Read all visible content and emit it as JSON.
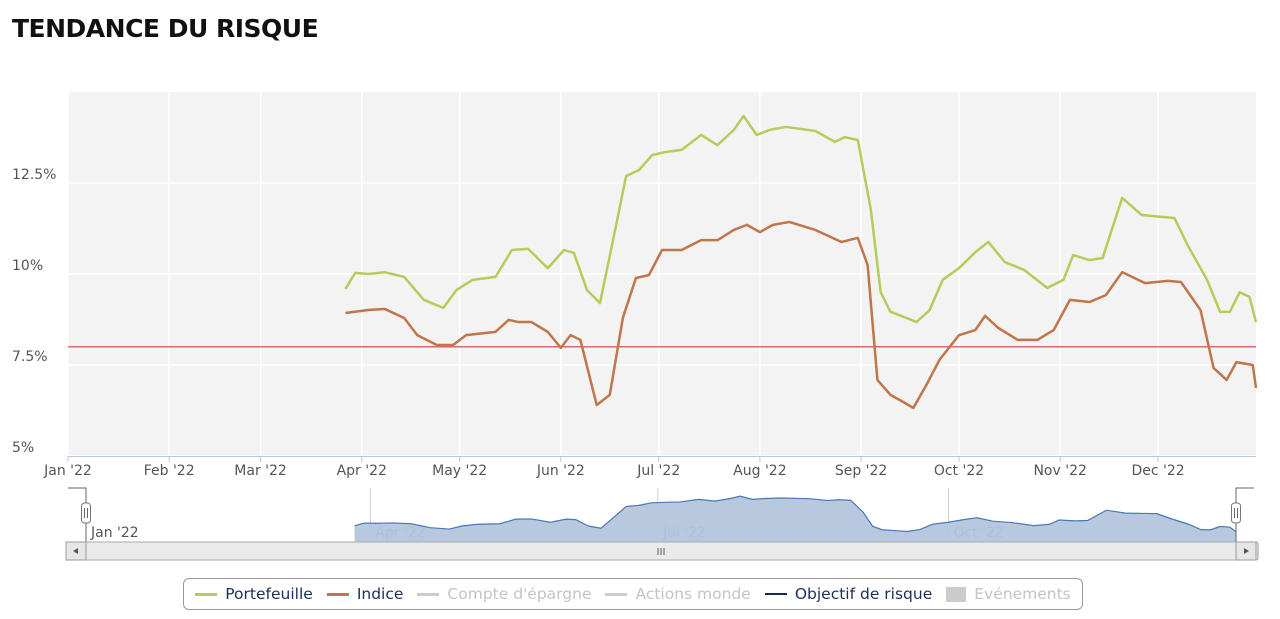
{
  "title": "TENDANCE DU RISQUE",
  "chart_data": {
    "type": "line",
    "title": "TENDANCE DU RISQUE",
    "xlabel": "",
    "ylabel": "",
    "xlim": [
      "2022-01-01",
      "2022-12-31"
    ],
    "ylim": [
      5,
      15
    ],
    "y_ticks": [
      {
        "v": 5,
        "label": "5%"
      },
      {
        "v": 7.5,
        "label": "7.5%"
      },
      {
        "v": 10,
        "label": "10%"
      },
      {
        "v": 12.5,
        "label": "12.5%"
      }
    ],
    "x_ticks": [
      {
        "d": "2022-01-01",
        "label": "Jan '22"
      },
      {
        "d": "2022-02-01",
        "label": "Feb '22"
      },
      {
        "d": "2022-03-01",
        "label": "Mar '22"
      },
      {
        "d": "2022-04-01",
        "label": "Apr '22"
      },
      {
        "d": "2022-05-01",
        "label": "May '22"
      },
      {
        "d": "2022-06-01",
        "label": "Jun '22"
      },
      {
        "d": "2022-07-01",
        "label": "Jul '22"
      },
      {
        "d": "2022-08-01",
        "label": "Aug '22"
      },
      {
        "d": "2022-09-01",
        "label": "Sep '22"
      },
      {
        "d": "2022-10-01",
        "label": "Oct '22"
      },
      {
        "d": "2022-11-01",
        "label": "Nov '22"
      },
      {
        "d": "2022-12-01",
        "label": "Dec '22"
      }
    ],
    "grid": true,
    "objective_line": {
      "name": "Objectif de risque",
      "value": 8.0,
      "color": "#e05a5a"
    },
    "series": [
      {
        "name": "Portefeuille",
        "color": "#b5cc5a",
        "points": [
          [
            "2022-03-27",
            9.59
          ],
          [
            "2022-03-30",
            10.03
          ],
          [
            "2022-04-03",
            10.0
          ],
          [
            "2022-04-08",
            10.05
          ],
          [
            "2022-04-14",
            9.92
          ],
          [
            "2022-04-20",
            9.29
          ],
          [
            "2022-04-26",
            9.07
          ],
          [
            "2022-04-30",
            9.56
          ],
          [
            "2022-05-05",
            9.84
          ],
          [
            "2022-05-12",
            9.92
          ],
          [
            "2022-05-17",
            10.66
          ],
          [
            "2022-05-22",
            10.69
          ],
          [
            "2022-05-28",
            10.16
          ],
          [
            "2022-06-02",
            10.66
          ],
          [
            "2022-06-05",
            10.58
          ],
          [
            "2022-06-09",
            9.56
          ],
          [
            "2022-06-13",
            9.2
          ],
          [
            "2022-06-17",
            10.93
          ],
          [
            "2022-06-21",
            12.69
          ],
          [
            "2022-06-25",
            12.86
          ],
          [
            "2022-06-29",
            13.27
          ],
          [
            "2022-07-03",
            13.35
          ],
          [
            "2022-07-08",
            13.41
          ],
          [
            "2022-07-14",
            13.82
          ],
          [
            "2022-07-19",
            13.54
          ],
          [
            "2022-07-24",
            13.96
          ],
          [
            "2022-07-27",
            14.34
          ],
          [
            "2022-07-31",
            13.82
          ],
          [
            "2022-08-04",
            13.96
          ],
          [
            "2022-08-09",
            14.04
          ],
          [
            "2022-08-18",
            13.93
          ],
          [
            "2022-08-24",
            13.63
          ],
          [
            "2022-08-27",
            13.76
          ],
          [
            "2022-08-31",
            13.68
          ],
          [
            "2022-09-04",
            11.76
          ],
          [
            "2022-09-07",
            9.5
          ],
          [
            "2022-09-10",
            8.96
          ],
          [
            "2022-09-15",
            8.79
          ],
          [
            "2022-09-18",
            8.68
          ],
          [
            "2022-09-22",
            9.01
          ],
          [
            "2022-09-26",
            9.84
          ],
          [
            "2022-10-01",
            10.16
          ],
          [
            "2022-10-06",
            10.6
          ],
          [
            "2022-10-10",
            10.88
          ],
          [
            "2022-10-15",
            10.33
          ],
          [
            "2022-10-21",
            10.11
          ],
          [
            "2022-10-28",
            9.62
          ],
          [
            "2022-11-02",
            9.84
          ],
          [
            "2022-11-05",
            10.52
          ],
          [
            "2022-11-10",
            10.38
          ],
          [
            "2022-11-14",
            10.44
          ],
          [
            "2022-11-20",
            12.09
          ],
          [
            "2022-11-26",
            11.62
          ],
          [
            "2022-12-02",
            11.57
          ],
          [
            "2022-12-06",
            11.54
          ],
          [
            "2022-12-10",
            10.8
          ],
          [
            "2022-12-16",
            9.84
          ],
          [
            "2022-12-20",
            8.96
          ],
          [
            "2022-12-23",
            8.96
          ],
          [
            "2022-12-26",
            9.5
          ],
          [
            "2022-12-29",
            9.37
          ],
          [
            "2022-12-31",
            8.68
          ]
        ]
      },
      {
        "name": "Indice",
        "color": "#c0754a",
        "points": [
          [
            "2022-03-27",
            8.93
          ],
          [
            "2022-04-03",
            9.01
          ],
          [
            "2022-04-08",
            9.04
          ],
          [
            "2022-04-14",
            8.79
          ],
          [
            "2022-04-18",
            8.32
          ],
          [
            "2022-04-24",
            8.05
          ],
          [
            "2022-04-29",
            8.05
          ],
          [
            "2022-05-03",
            8.32
          ],
          [
            "2022-05-12",
            8.41
          ],
          [
            "2022-05-16",
            8.74
          ],
          [
            "2022-05-19",
            8.68
          ],
          [
            "2022-05-23",
            8.68
          ],
          [
            "2022-05-28",
            8.41
          ],
          [
            "2022-06-01",
            7.97
          ],
          [
            "2022-06-04",
            8.32
          ],
          [
            "2022-06-07",
            8.19
          ],
          [
            "2022-06-12",
            6.4
          ],
          [
            "2022-06-16",
            6.68
          ],
          [
            "2022-06-20",
            8.79
          ],
          [
            "2022-06-24",
            9.89
          ],
          [
            "2022-06-28",
            9.97
          ],
          [
            "2022-07-02",
            10.66
          ],
          [
            "2022-07-08",
            10.66
          ],
          [
            "2022-07-14",
            10.93
          ],
          [
            "2022-07-19",
            10.93
          ],
          [
            "2022-07-24",
            11.21
          ],
          [
            "2022-07-28",
            11.35
          ],
          [
            "2022-08-01",
            11.15
          ],
          [
            "2022-08-05",
            11.35
          ],
          [
            "2022-08-10",
            11.43
          ],
          [
            "2022-08-18",
            11.21
          ],
          [
            "2022-08-26",
            10.88
          ],
          [
            "2022-08-31",
            10.99
          ],
          [
            "2022-09-03",
            10.25
          ],
          [
            "2022-09-06",
            7.09
          ],
          [
            "2022-09-10",
            6.68
          ],
          [
            "2022-09-14",
            6.48
          ],
          [
            "2022-09-17",
            6.32
          ],
          [
            "2022-09-21",
            6.95
          ],
          [
            "2022-09-25",
            7.64
          ],
          [
            "2022-10-01",
            8.32
          ],
          [
            "2022-10-06",
            8.46
          ],
          [
            "2022-10-09",
            8.85
          ],
          [
            "2022-10-13",
            8.52
          ],
          [
            "2022-10-19",
            8.19
          ],
          [
            "2022-10-25",
            8.19
          ],
          [
            "2022-10-30",
            8.46
          ],
          [
            "2022-11-04",
            9.29
          ],
          [
            "2022-11-10",
            9.23
          ],
          [
            "2022-11-15",
            9.42
          ],
          [
            "2022-11-20",
            10.05
          ],
          [
            "2022-11-27",
            9.75
          ],
          [
            "2022-12-04",
            9.81
          ],
          [
            "2022-12-08",
            9.78
          ],
          [
            "2022-12-14",
            9.01
          ],
          [
            "2022-12-18",
            7.42
          ],
          [
            "2022-12-22",
            7.09
          ],
          [
            "2022-12-25",
            7.58
          ],
          [
            "2022-12-28",
            7.53
          ],
          [
            "2022-12-30",
            7.5
          ],
          [
            "2022-12-31",
            6.87
          ]
        ]
      }
    ],
    "legend_position": "bottom",
    "navigator": {
      "x_ticks": [
        {
          "d": "2022-01-01",
          "label": "Jan '22"
        },
        {
          "d": "2022-04-01",
          "label": "Apr '22"
        },
        {
          "d": "2022-07-01",
          "label": "Jul '22"
        },
        {
          "d": "2022-10-01",
          "label": "Oct '22"
        }
      ],
      "fill": "#b3c5dd",
      "line": "#4a78b5"
    }
  },
  "legend": [
    {
      "label": "Portefeuille",
      "color": "#b5cc5a",
      "active": true,
      "kind": "line"
    },
    {
      "label": "Indice",
      "color": "#c0754a",
      "active": true,
      "kind": "line"
    },
    {
      "label": "Compte d'épargne",
      "color": "#cccccc",
      "active": false,
      "kind": "line"
    },
    {
      "label": "Actions monde",
      "color": "#cccccc",
      "active": false,
      "kind": "line"
    },
    {
      "label": "Objectif de risque",
      "color": "#1a2a50",
      "active": true,
      "kind": "line"
    },
    {
      "label": "Evénements",
      "color": "#cccccc",
      "active": false,
      "kind": "box"
    }
  ]
}
